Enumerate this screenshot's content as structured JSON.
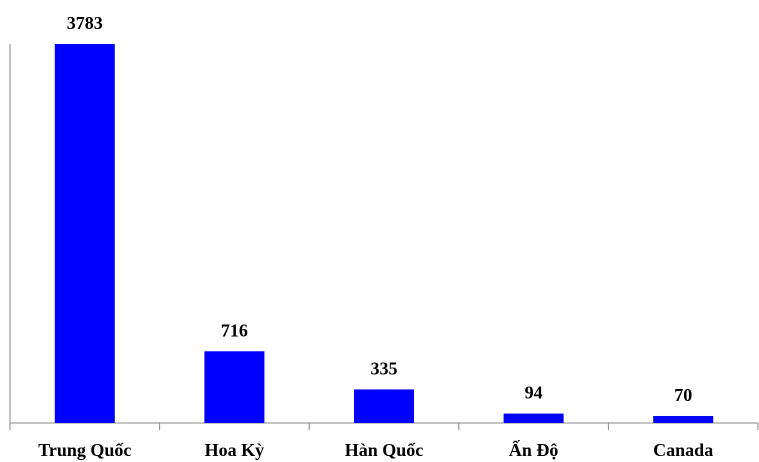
{
  "chart_data": {
    "type": "bar",
    "categories": [
      "Trung Quốc",
      "Hoa Kỳ",
      "Hàn Quốc",
      "Ấn Độ",
      "Canada"
    ],
    "values": [
      3783,
      716,
      335,
      94,
      70
    ],
    "color": "#0000ff"
  }
}
